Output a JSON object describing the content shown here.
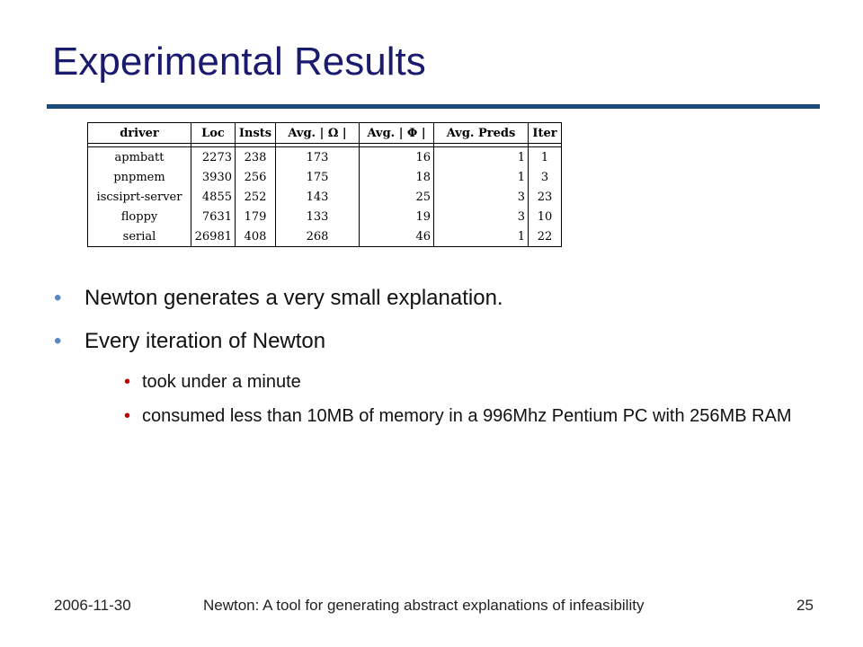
{
  "slide": {
    "title": "Experimental Results",
    "bullet_glyph": "•"
  },
  "table": {
    "headers": [
      "driver",
      "Loc",
      "Insts",
      "Avg. | Ω |",
      "Avg. | Φ |",
      "Avg. Preds",
      "Iter"
    ],
    "rows": [
      [
        "apmbatt",
        "2273",
        "238",
        "173",
        "16",
        "1",
        "1"
      ],
      [
        "pnpmem",
        "3930",
        "256",
        "175",
        "18",
        "1",
        "3"
      ],
      [
        "iscsiprt-server",
        "4855",
        "252",
        "143",
        "25",
        "3",
        "23"
      ],
      [
        "floppy",
        "7631",
        "179",
        "133",
        "19",
        "3",
        "10"
      ],
      [
        "serial",
        "26981",
        "408",
        "268",
        "46",
        "1",
        "22"
      ]
    ]
  },
  "bullets": [
    {
      "text": "Newton generates a very small explanation."
    },
    {
      "text": "Every iteration of Newton",
      "sub": [
        "took under a minute",
        "consumed less than 10MB of memory in a 996Mhz Pentium PC with 256MB RAM"
      ]
    }
  ],
  "footer": {
    "date": "2006-11-30",
    "center": "Newton:  A tool for generating abstract explanations of infeasibility",
    "page": "25"
  },
  "colors": {
    "title": "#1a1a6e",
    "rule": "#1a4a7a",
    "bullet_l1": "#5b87c7",
    "bullet_l2": "#c00000"
  }
}
